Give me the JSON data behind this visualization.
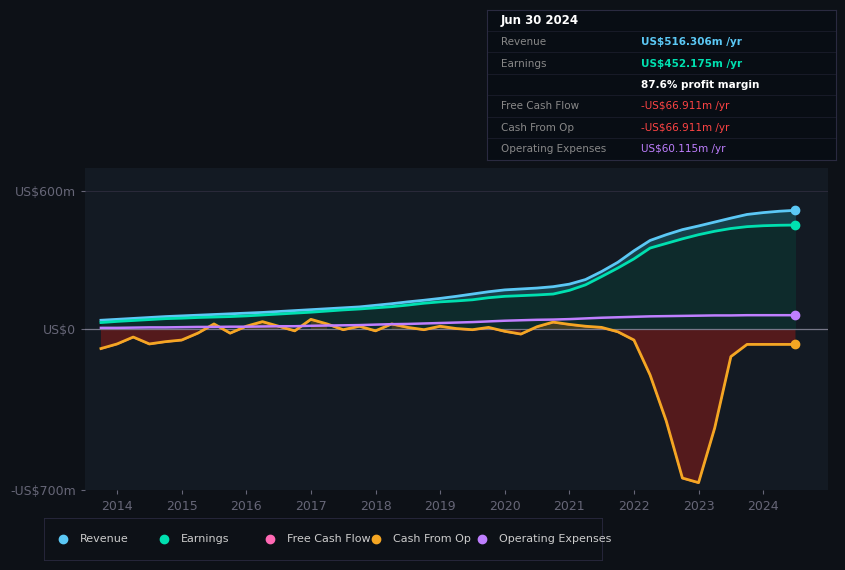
{
  "bg_color": "#0d1117",
  "plot_bg_color": "#131a23",
  "ylim": [
    -700,
    700
  ],
  "xlim": [
    2013.5,
    2025.0
  ],
  "y_ticks_labels": [
    "US$600m",
    "US$0",
    "-US$700m"
  ],
  "y_ticks_values": [
    600,
    0,
    -700
  ],
  "x_ticks": [
    2014,
    2015,
    2016,
    2017,
    2018,
    2019,
    2020,
    2021,
    2022,
    2023,
    2024
  ],
  "colors": {
    "revenue": "#5bc8f5",
    "earnings": "#00e0b0",
    "fcf": "#ff69b4",
    "cashfromop": "#f5a623",
    "opex": "#bf7fff"
  },
  "legend": [
    {
      "label": "Revenue",
      "color": "#5bc8f5"
    },
    {
      "label": "Earnings",
      "color": "#00e0b0"
    },
    {
      "label": "Free Cash Flow",
      "color": "#ff69b4"
    },
    {
      "label": "Cash From Op",
      "color": "#f5a623"
    },
    {
      "label": "Operating Expenses",
      "color": "#bf7fff"
    }
  ],
  "info_rows": [
    {
      "label": "Jun 30 2024",
      "value": "",
      "label_color": "#ffffff",
      "value_color": "#ffffff",
      "header": true
    },
    {
      "label": "Revenue",
      "value": "US$516.306m /yr",
      "label_color": "#888888",
      "value_color": "#5bc8f5",
      "header": false
    },
    {
      "label": "Earnings",
      "value": "US$452.175m /yr",
      "label_color": "#888888",
      "value_color": "#00e0b0",
      "header": false
    },
    {
      "label": "",
      "value": "87.6% profit margin",
      "label_color": "#888888",
      "value_color": "#ffffff",
      "header": false
    },
    {
      "label": "Free Cash Flow",
      "value": "-US$66.911m /yr",
      "label_color": "#888888",
      "value_color": "#ff4444",
      "header": false
    },
    {
      "label": "Cash From Op",
      "value": "-US$66.911m /yr",
      "label_color": "#888888",
      "value_color": "#ff4444",
      "header": false
    },
    {
      "label": "Operating Expenses",
      "value": "US$60.115m /yr",
      "label_color": "#888888",
      "value_color": "#bf7fff",
      "header": false
    }
  ]
}
